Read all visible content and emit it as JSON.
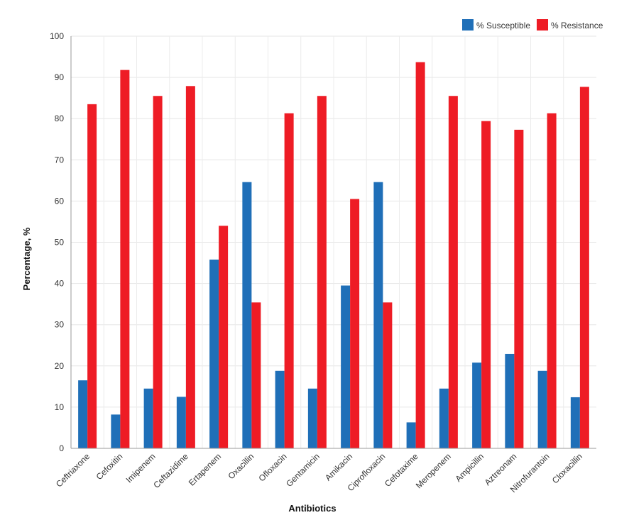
{
  "chart_data": {
    "type": "bar",
    "categories": [
      "Ceftriaxone",
      "Cefoxitin",
      "Imipenem",
      "Ceftazidime",
      "Ertapenem",
      "Oxacillin",
      "Ofloxacin",
      "Gentamicin",
      "Amikacin",
      "Ciprofloxacin",
      "Cefotaxime",
      "Meropenem",
      "Ampicillin",
      "Aztreonam",
      "Nitrofurantoin",
      "Cloxacillin"
    ],
    "series": [
      {
        "name": "% Susceptible",
        "color": "#1f6fb8",
        "values": [
          16.5,
          8.2,
          14.5,
          12.5,
          45.8,
          64.6,
          18.8,
          14.5,
          39.5,
          64.6,
          6.3,
          14.5,
          20.8,
          22.9,
          18.8,
          12.4
        ]
      },
      {
        "name": "% Resistance",
        "color": "#ee1c25",
        "values": [
          83.5,
          91.8,
          85.5,
          87.9,
          54.0,
          35.4,
          81.3,
          85.5,
          60.5,
          35.4,
          93.7,
          85.5,
          79.4,
          77.3,
          81.3,
          87.7
        ]
      }
    ],
    "xlabel": "Antibiotics",
    "ylabel": "Percentage, %",
    "ylim": [
      0,
      100
    ],
    "yticks": [
      0,
      10,
      20,
      30,
      40,
      50,
      60,
      70,
      80,
      90,
      100
    ],
    "grid": true,
    "legend_position": "top-right"
  }
}
